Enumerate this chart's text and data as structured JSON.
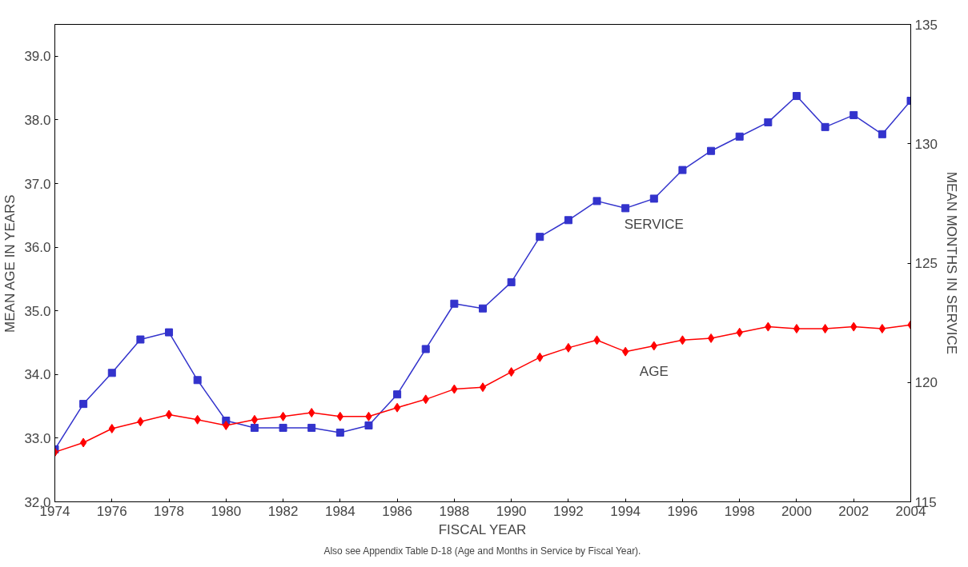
{
  "chart_data": {
    "type": "line",
    "xlabel": "FISCAL YEAR",
    "ylabel": "MEAN AGE IN YEARS",
    "y2label": "MEAN MONTHS IN SERVICE",
    "x": [
      1974,
      1975,
      1976,
      1977,
      1978,
      1979,
      1980,
      1981,
      1982,
      1983,
      1984,
      1985,
      1986,
      1987,
      1988,
      1989,
      1990,
      1991,
      1992,
      1993,
      1994,
      1995,
      1996,
      1997,
      1998,
      1999,
      2000,
      2001,
      2002,
      2003,
      2004
    ],
    "series": [
      {
        "name": "SERVICE",
        "color": "#3333cc",
        "axis": "y2",
        "marker": "square",
        "values": [
          117.2,
          119.1,
          120.4,
          121.8,
          122.1,
          120.1,
          118.4,
          118.1,
          118.1,
          118.1,
          117.9,
          118.2,
          119.5,
          121.4,
          123.3,
          123.1,
          124.2,
          126.1,
          126.8,
          127.6,
          127.3,
          127.7,
          128.9,
          129.7,
          130.3,
          130.9,
          132.0,
          130.7,
          131.2,
          130.4,
          131.8
        ]
      },
      {
        "name": "AGE",
        "color": "#ff0000",
        "marker": "diamond",
        "values": [
          32.78,
          32.93,
          33.15,
          33.26,
          33.37,
          33.29,
          33.2,
          33.29,
          33.34,
          33.4,
          33.34,
          33.34,
          33.48,
          33.61,
          33.77,
          33.8,
          34.04,
          34.27,
          34.42,
          34.54,
          34.36,
          34.45,
          34.54,
          34.57,
          34.66,
          34.75,
          34.72,
          34.72,
          34.75,
          34.72,
          34.78
        ]
      }
    ],
    "xlim": [
      1974,
      2004
    ],
    "xticks": [
      1974,
      1976,
      1978,
      1980,
      1982,
      1984,
      1986,
      1988,
      1990,
      1992,
      1994,
      1996,
      1998,
      2000,
      2002,
      2004
    ],
    "ylim": [
      32,
      39.5
    ],
    "yticks": [
      {
        "value": 32,
        "label": "32.0"
      },
      {
        "value": 33,
        "label": "33.0"
      },
      {
        "value": 34,
        "label": "34.0"
      },
      {
        "value": 35,
        "label": "35.0"
      },
      {
        "value": 36,
        "label": "36.0"
      },
      {
        "value": 37,
        "label": "37.0"
      },
      {
        "value": 38,
        "label": "38.0"
      },
      {
        "value": 39,
        "label": "39.0"
      }
    ],
    "y2lim": [
      115,
      135
    ],
    "y2ticks": [
      115,
      120,
      125,
      130,
      135
    ],
    "grid": false,
    "legend": false,
    "line_style": "solid",
    "annotations": [
      "Also see Appendix Table D-18 (Age and Months in Service by Fiscal Year)."
    ]
  }
}
